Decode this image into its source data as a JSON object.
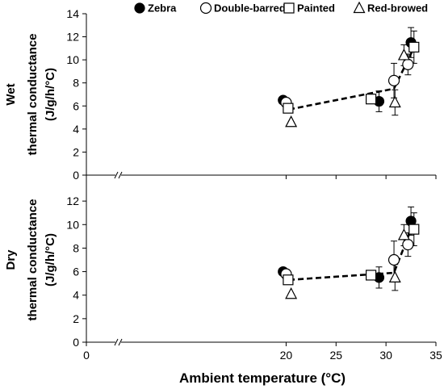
{
  "chart_data": {
    "type": "scatter",
    "xlabel": "Ambient temperature (°C)",
    "xlim": [
      0,
      35
    ],
    "x_ticks": [
      0,
      20,
      25,
      30,
      35
    ],
    "x_axis_break": true,
    "legend_placement": "top",
    "markers": {
      "Zebra": "filled-circle",
      "Double-barred": "open-circle",
      "Painted": "open-square",
      "Red-browed": "open-triangle"
    },
    "legend": [
      "Zebra",
      "Double-barred",
      "Painted",
      "Red-browed"
    ],
    "panels": [
      {
        "name": "Wet",
        "ylabel": [
          "Wet",
          "thermal conductance",
          "(J/g/h/°C)"
        ],
        "ylim": [
          0,
          14
        ],
        "y_ticks": [
          0,
          2,
          4,
          6,
          8,
          10,
          12,
          14
        ],
        "series": [
          {
            "name": "Zebra",
            "points": [
              {
                "x": 19.7,
                "y": 6.5,
                "err": 0.0
              },
              {
                "x": 29.3,
                "y": 6.4,
                "err": 0.9
              },
              {
                "x": 32.5,
                "y": 11.5,
                "err": 1.3
              }
            ]
          },
          {
            "name": "Double-barred",
            "points": [
              {
                "x": 20.0,
                "y": 6.3,
                "err": 0.0
              },
              {
                "x": 30.8,
                "y": 8.2,
                "err": 1.5
              },
              {
                "x": 32.2,
                "y": 9.6,
                "err": 0.9
              }
            ]
          },
          {
            "name": "Painted",
            "points": [
              {
                "x": 20.2,
                "y": 5.8,
                "err": 0.0
              },
              {
                "x": 28.5,
                "y": 6.6,
                "err": 0.4
              },
              {
                "x": 32.8,
                "y": 11.1,
                "err": 1.4
              }
            ]
          },
          {
            "name": "Red-browed",
            "points": [
              {
                "x": 20.5,
                "y": 4.6,
                "err": 0.0
              },
              {
                "x": 30.9,
                "y": 6.3,
                "err": 1.1
              },
              {
                "x": 31.8,
                "y": 10.4,
                "err": 0.9
              }
            ]
          }
        ],
        "trend": [
          {
            "x": 20.3,
            "y": 5.7
          },
          {
            "x": 30.8,
            "y": 7.5
          },
          {
            "x": 32.6,
            "y": 10.7
          }
        ]
      },
      {
        "name": "Dry",
        "ylabel": [
          "Dry",
          "thermal conductance",
          "(J/g/h/°C)"
        ],
        "ylim": [
          0,
          14
        ],
        "y_ticks": [
          0,
          2,
          4,
          6,
          8,
          10,
          12
        ],
        "series": [
          {
            "name": "Zebra",
            "points": [
              {
                "x": 19.7,
                "y": 6.0,
                "err": 0.0
              },
              {
                "x": 29.3,
                "y": 5.5,
                "err": 0.9
              },
              {
                "x": 32.5,
                "y": 10.3,
                "err": 1.2
              }
            ]
          },
          {
            "name": "Double-barred",
            "points": [
              {
                "x": 20.0,
                "y": 5.8,
                "err": 0.0
              },
              {
                "x": 30.8,
                "y": 7.0,
                "err": 1.6
              },
              {
                "x": 32.2,
                "y": 8.3,
                "err": 1.0
              }
            ]
          },
          {
            "name": "Painted",
            "points": [
              {
                "x": 20.2,
                "y": 5.3,
                "err": 0.0
              },
              {
                "x": 28.5,
                "y": 5.7,
                "err": 0.4
              },
              {
                "x": 32.8,
                "y": 9.6,
                "err": 1.4
              }
            ]
          },
          {
            "name": "Red-browed",
            "points": [
              {
                "x": 20.5,
                "y": 4.1,
                "err": 0.0
              },
              {
                "x": 30.9,
                "y": 5.5,
                "err": 1.1
              },
              {
                "x": 31.8,
                "y": 9.1,
                "err": 0.9
              }
            ]
          }
        ],
        "trend": [
          {
            "x": 20.3,
            "y": 5.3
          },
          {
            "x": 30.8,
            "y": 5.9
          },
          {
            "x": 32.6,
            "y": 9.8
          }
        ]
      }
    ]
  }
}
